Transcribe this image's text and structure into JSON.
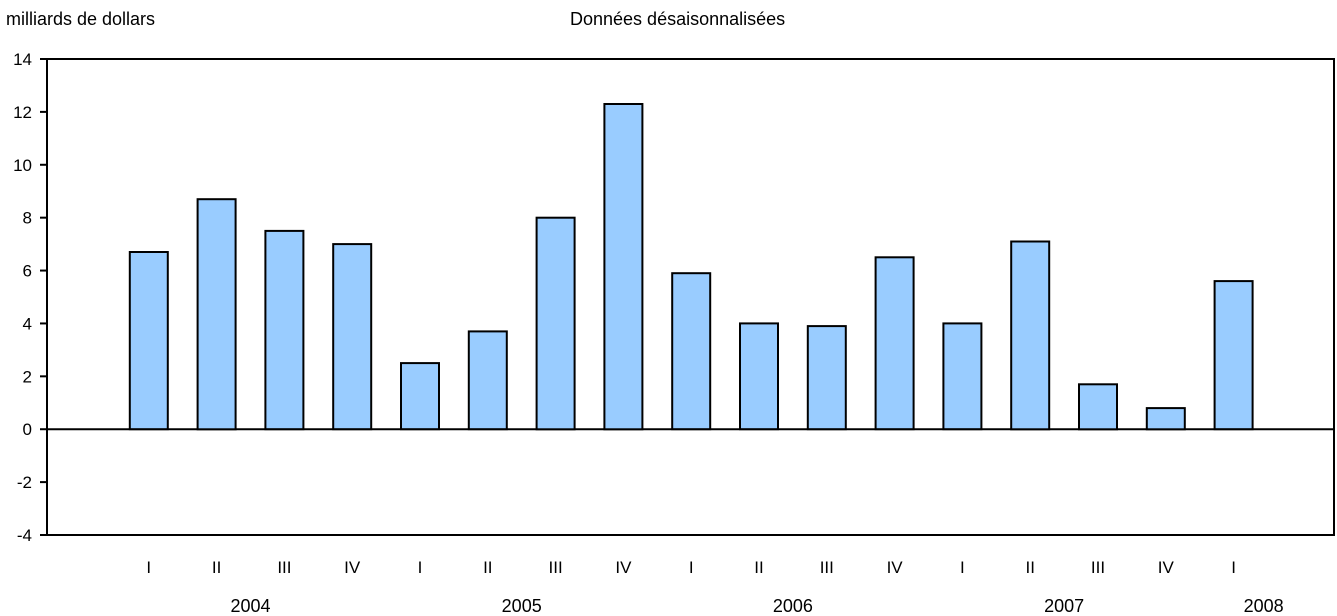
{
  "header": {
    "units_label": "milliards de dollars",
    "subtitle": "Données désaisonnalisées"
  },
  "chart_data": {
    "type": "bar",
    "title": "Données désaisonnalisées",
    "ylabel": "milliards de dollars",
    "xlabel": "",
    "ylim": [
      -4,
      14
    ],
    "yticks": [
      14,
      12,
      10,
      8,
      6,
      4,
      2,
      0,
      -2,
      -4
    ],
    "grid": false,
    "categories": [
      "I",
      "II",
      "III",
      "IV",
      "I",
      "II",
      "III",
      "IV",
      "I",
      "II",
      "III",
      "IV",
      "I",
      "II",
      "III",
      "IV",
      "I"
    ],
    "years": [
      "2004",
      "2005",
      "2006",
      "2007",
      "2008"
    ],
    "values": [
      6.7,
      8.7,
      7.5,
      7.0,
      2.5,
      3.7,
      8.0,
      12.3,
      5.9,
      4.0,
      3.9,
      6.5,
      4.0,
      7.1,
      1.7,
      0.8,
      5.6
    ],
    "bar_color": "#99ccff",
    "outline_color": "#000000"
  }
}
